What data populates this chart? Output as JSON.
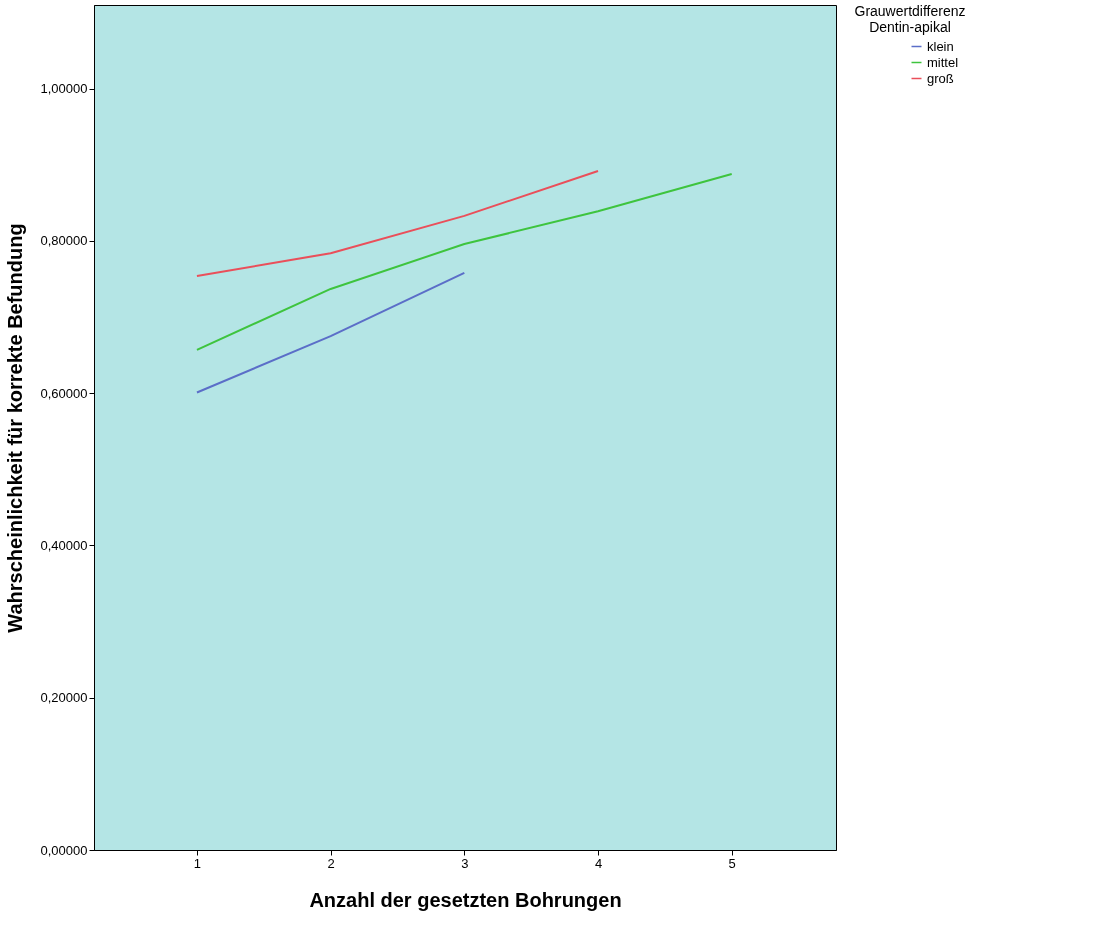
{
  "chart_data": {
    "type": "line",
    "xlabel": "Anzahl der gesetzten Bohrungen",
    "ylabel": "Wahrscheinlichkeit für korrekte Befundung",
    "legend_title": "Grauwertdifferenz\nDentin-apikal",
    "series": [
      {
        "name": "klein",
        "color": "#5b6ec8",
        "x": [
          1,
          2,
          3
        ],
        "values": [
          0.601,
          0.675,
          0.758
        ]
      },
      {
        "name": "mittel",
        "color": "#3ec43e",
        "x": [
          1,
          2,
          3,
          4,
          5
        ],
        "values": [
          0.657,
          0.737,
          0.796,
          0.839,
          0.888
        ]
      },
      {
        "name": "groß",
        "color": "#ea4f5a",
        "x": [
          1,
          2,
          3,
          4
        ],
        "values": [
          0.754,
          0.784,
          0.833,
          0.892
        ]
      }
    ],
    "xlim": [
      0.23,
      5.78
    ],
    "xticks": [
      1,
      2,
      3,
      4,
      5
    ],
    "ylim": [
      0,
      1.11
    ],
    "yticks": [
      {
        "value": 0,
        "label": "0,00000"
      },
      {
        "value": 0.2,
        "label": "0,20000"
      },
      {
        "value": 0.4,
        "label": "0,40000"
      },
      {
        "value": 0.6,
        "label": "0,60000"
      },
      {
        "value": 0.8,
        "label": "0,80000"
      },
      {
        "value": 1,
        "label": "1,00000"
      }
    ],
    "legend": "right",
    "grid": false,
    "marker": "none",
    "line_style": "solid"
  }
}
